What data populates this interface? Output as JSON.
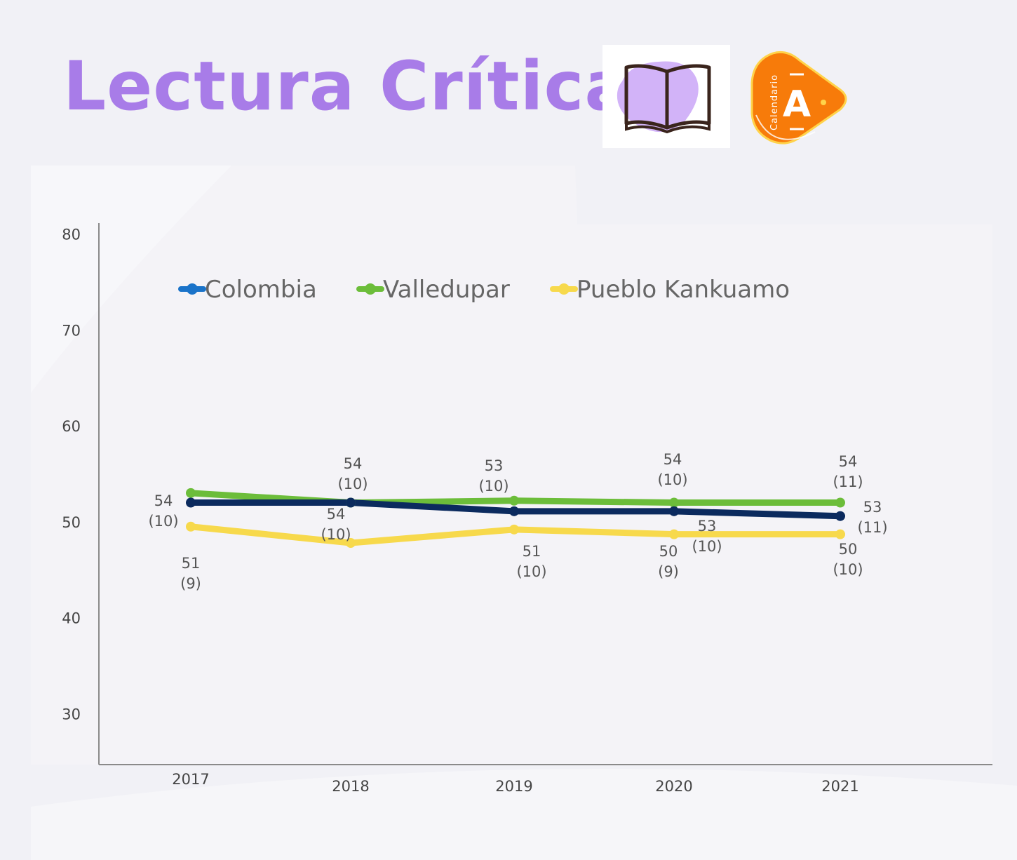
{
  "header": {
    "title": "Lectura Crítica",
    "icons": [
      "open-book-icon",
      "calendario-a-logo"
    ],
    "logo_vertical_text": "Calendario",
    "logo_letter": "A"
  },
  "colors": {
    "background": "#f1f1f6",
    "title": "#a87ce8",
    "colombia": "#0b2a5e",
    "colombia_legend": "#1a73c9",
    "valledupar": "#6cbd3a",
    "pueblo_kankuamo": "#f7d94c",
    "logo_orange": "#f77b0a",
    "book_blob": "#d2b3f8"
  },
  "chart_data": {
    "type": "line",
    "categories": [
      "2017",
      "2018",
      "2019",
      "2020",
      "2021"
    ],
    "ylim": [
      25,
      80
    ],
    "yticks": [
      30,
      40,
      50,
      60,
      70,
      80
    ],
    "legend_position": "top",
    "series": [
      {
        "name": "Colombia",
        "values": [
          52,
          52,
          51.1,
          51.1,
          50.6
        ],
        "labels": [
          {
            "value": "54",
            "sd": "(10)"
          },
          {
            "value": "54",
            "sd": "(10)"
          },
          {
            "value": "53",
            "sd": "(10)"
          },
          {
            "value": "53",
            "sd": "(10)"
          },
          {
            "value": "53",
            "sd": "(11)"
          }
        ]
      },
      {
        "name": "Valledupar",
        "values": [
          53,
          52,
          52.2,
          52,
          52
        ],
        "labels": [
          {
            "value": "",
            "sd": ""
          },
          {
            "value": "54",
            "sd": "(10)"
          },
          {
            "value": "",
            "sd": ""
          },
          {
            "value": "54",
            "sd": "(10)"
          },
          {
            "value": "54",
            "sd": "(11)"
          }
        ]
      },
      {
        "name": "Pueblo Kankuamo",
        "values": [
          49.5,
          47.8,
          49.2,
          48.7,
          48.7
        ],
        "labels": [
          {
            "value": "51",
            "sd": "(9)"
          },
          {
            "value": "",
            "sd": ""
          },
          {
            "value": "51",
            "sd": "(10)"
          },
          {
            "value": "50",
            "sd": "(9)"
          },
          {
            "value": "50",
            "sd": "(10)"
          }
        ]
      }
    ]
  }
}
